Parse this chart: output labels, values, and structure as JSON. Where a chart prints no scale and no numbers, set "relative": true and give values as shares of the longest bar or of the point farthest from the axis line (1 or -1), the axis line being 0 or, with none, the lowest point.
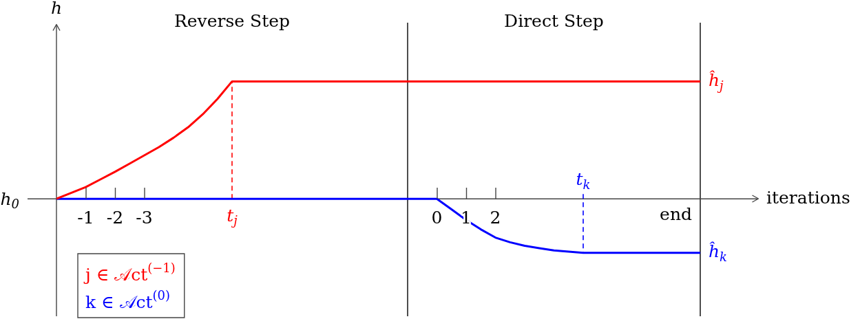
{
  "chart_data": {
    "type": "line",
    "relative": true,
    "xlabel": "iterations",
    "ylabel": "h",
    "xlim": [
      -13,
      11
    ],
    "xticks": [
      0,
      1,
      2
    ],
    "x2lim": [
      0,
      -24
    ],
    "x2ticks": [
      -1,
      -2,
      -3
    ],
    "series": [
      {
        "name": "j ∈ 𝒜ct$^{(−1)}$",
        "color": "#ff0000",
        "x": [
          -13,
          -12.5,
          -12,
          -11.5,
          -11,
          -10.5,
          -10,
          -9.5,
          -9,
          -8.5,
          -8,
          -7.5,
          -7,
          9
        ],
        "values": [
          0,
          0.05,
          0.1,
          0.165,
          0.23,
          0.3,
          0.37,
          0.44,
          0.52,
          0.61,
          0.72,
          0.85,
          1,
          1
        ]
      },
      {
        "name": "k ∈ 𝒜ct$^{(0)}$",
        "color": "#0000ff",
        "x": [
          -13,
          0,
          0.5,
          1,
          1.5,
          2,
          2.5,
          3,
          3.5,
          4,
          4.5,
          5,
          9
        ],
        "values": [
          0,
          0,
          -0.09,
          -0.18,
          -0.26,
          -0.33,
          -0.37,
          -0.4,
          -0.42,
          -0.44,
          -0.45,
          -0.46,
          -0.46
        ]
      },
      {
        "type": "line",
        "color": "#ff0000",
        "line_style": "dashed",
        "x": [
          -7,
          -7
        ],
        "values": [
          0,
          1
        ]
      },
      {
        "type": "line",
        "color": "#0000ff",
        "line_style": "dashed",
        "x": [
          5,
          5
        ],
        "values": [
          0.04,
          -0.46
        ]
      }
    ],
    "ref_lines": [
      {
        "axis": "x",
        "value": -1,
        "color": "#000000"
      },
      {
        "axis": "x",
        "value": 9,
        "color": "#000000"
      }
    ],
    "annotations": [
      "Reverse Step",
      "Direct Step",
      {
        "text": "h$_{0}$",
        "x": -13,
        "y": 0
      },
      {
        "text": "end",
        "x": 9,
        "y": 0
      },
      {
        "text": "ĥ$_{j}$",
        "x": 9,
        "y": 1
      },
      {
        "text": "ĥ$_{k}$",
        "x": 9,
        "y": -0.46
      },
      {
        "text": "t$_{j}$",
        "x": -7,
        "y": 0
      },
      {
        "text": "t$_{k}$",
        "x": 5,
        "y": 0.04
      }
    ],
    "legend": "bottom left",
    "marker": "none"
  }
}
